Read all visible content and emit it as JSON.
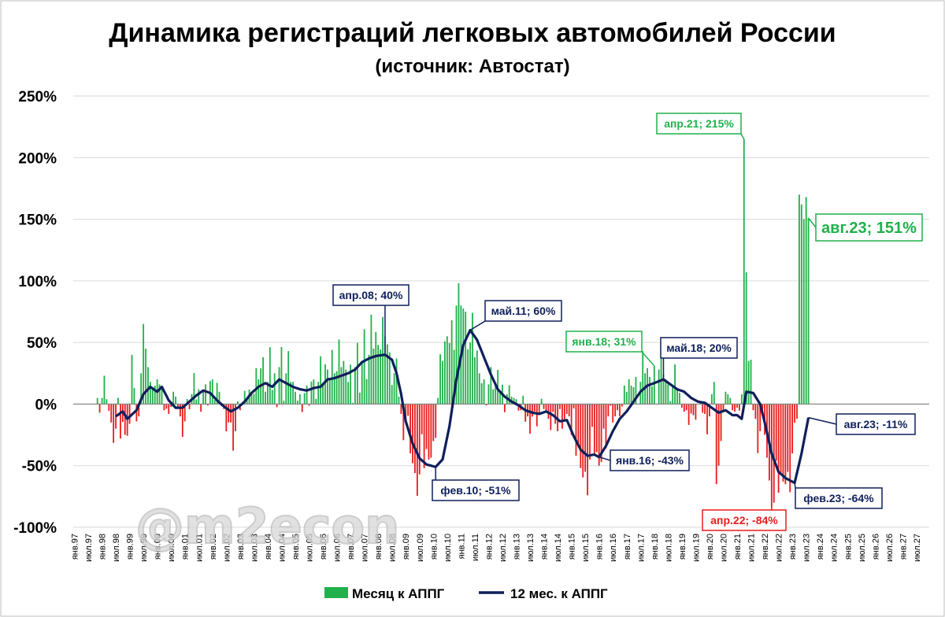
{
  "watermark": "@m2econ",
  "colors": {
    "positive": "#21b04b",
    "negative": "#e81c1c",
    "line": "#0e1f5b",
    "grid": "#d9d9d9"
  },
  "chart_data": {
    "type": "bar",
    "title": "Динамика регистраций легковых автомобилей России",
    "subtitle": "(источник: Автостат)",
    "ylim": [
      -100,
      250
    ],
    "yticks": [
      {
        "v": 250,
        "label": "250%"
      },
      {
        "v": 200,
        "label": "200%"
      },
      {
        "v": 150,
        "label": "150%"
      },
      {
        "v": 100,
        "label": "100%"
      },
      {
        "v": 50,
        "label": "50%"
      },
      {
        "v": 0,
        "label": "0%"
      },
      {
        "v": -50,
        "label": "-50%"
      },
      {
        "v": -100,
        "label": "-100%"
      }
    ],
    "x_tick_labels": [
      "янв.97",
      "июл.97",
      "янв.98",
      "июл.98",
      "янв.99",
      "июл.99",
      "янв.00",
      "июл.00",
      "янв.01",
      "июл.01",
      "янв.02",
      "июл.02",
      "янв.03",
      "июл.03",
      "янв.04",
      "июл.04",
      "янв.05",
      "июл.05",
      "янв.06",
      "июл.06",
      "янв.07",
      "июл.07",
      "янв.08",
      "июл.08",
      "янв.09",
      "июл.09",
      "янв.10",
      "июл.10",
      "янв.11",
      "июл.11",
      "янв.12",
      "июл.12",
      "янв.13",
      "июл.13",
      "янв.14",
      "июл.14",
      "янв.15",
      "июл.15",
      "янв.16",
      "июл.16",
      "янв.17",
      "июл.17",
      "янв.18",
      "июл.18",
      "янв.19",
      "июл.19",
      "янв.20",
      "июл.20",
      "янв.21",
      "июл.21",
      "янв.22",
      "июл.22",
      "янв.23",
      "июл.23",
      "янв.24",
      "июл.24",
      "янв.25",
      "июл.25",
      "янв.26",
      "июл.26",
      "янв.27",
      "июл.27"
    ],
    "start_month": "янв.97",
    "series": [
      {
        "name": "Месяц к АППГ",
        "kind": "bar",
        "values": [
          null,
          null,
          null,
          null,
          null,
          null,
          null,
          null,
          null,
          null,
          null,
          null,
          null,
          null,
          null,
          null,
          null,
          null,
          null,
          null,
          null,
          null,
          null,
          null,
          null,
          null,
          null,
          null,
          null,
          null,
          null,
          null,
          null,
          null,
          null,
          null,
          null,
          null,
          null,
          null,
          null,
          null,
          null,
          null,
          null,
          null,
          null,
          null,
          null,
          null,
          null,
          null,
          null,
          null,
          null,
          null,
          null,
          null,
          null,
          null,
          null,
          null,
          null,
          null,
          null,
          null,
          null,
          null,
          null,
          null,
          null,
          null,
          null,
          null,
          null,
          null,
          null,
          null,
          null,
          null,
          null,
          null,
          null,
          null,
          null,
          null,
          null,
          null,
          null,
          null,
          null,
          null,
          null,
          null,
          null,
          null,
          null,
          null,
          null,
          null,
          null,
          null,
          null,
          null,
          null,
          null,
          null,
          null,
          null,
          null,
          null,
          null,
          null,
          null,
          null,
          null,
          null,
          null,
          null,
          null,
          null,
          null,
          null,
          null,
          null,
          null,
          null,
          null,
          null,
          null,
          null,
          null,
          null,
          null,
          null,
          null,
          null,
          null,
          null,
          null,
          null,
          null,
          null,
          null,
          null,
          null,
          null,
          null,
          null,
          null,
          null,
          null,
          null,
          null,
          null,
          null,
          null,
          null,
          null,
          null,
          null,
          null,
          null,
          null,
          null,
          null,
          null,
          null,
          null,
          null,
          null,
          null,
          null,
          null,
          null,
          null,
          null,
          null,
          null,
          null,
          null,
          null,
          null,
          null,
          null,
          null,
          null,
          null,
          null,
          null,
          null,
          null,
          null,
          null,
          null,
          null,
          null,
          null,
          null,
          null,
          null,
          null,
          null,
          null,
          null,
          null,
          null,
          null,
          null,
          null,
          null,
          null,
          null,
          null,
          null,
          null,
          null,
          null,
          null,
          null,
          null,
          null,
          null,
          null,
          null,
          null,
          null,
          null,
          null,
          null,
          null,
          null,
          null,
          null,
          null,
          null,
          null,
          null,
          null,
          null,
          null,
          null,
          null,
          null,
          null,
          null,
          null,
          null,
          null,
          null,
          null,
          null,
          null,
          null,
          null,
          null,
          null,
          null,
          null,
          null,
          null,
          null,
          null,
          null,
          null,
          null,
          null,
          null,
          null,
          null,
          null,
          null,
          null,
          null,
          null,
          null,
          null,
          null,
          null,
          null,
          null,
          null,
          null,
          null,
          null,
          null,
          null,
          null,
          null,
          null,
          null,
          null,
          null,
          null,
          null,
          null,
          null,
          null,
          null,
          null,
          null,
          null,
          null,
          null,
          null,
          null,
          null,
          null,
          null,
          null,
          null,
          null,
          null,
          null,
          null,
          null,
          null,
          null,
          null,
          null,
          null,
          null,
          null,
          null,
          null,
          null,
          null,
          null,
          null,
          null,
          null,
          null,
          null,
          null,
          null,
          null,
          null,
          null,
          null,
          null,
          null,
          null,
          null,
          null,
          null,
          null,
          null,
          null,
          null,
          null,
          null,
          null,
          null,
          null,
          null,
          null,
          null,
          null,
          null,
          null,
          null,
          null,
          null,
          null,
          null,
          null,
          null,
          null,
          null,
          null,
          null,
          null,
          null,
          null,
          null,
          null,
          null,
          null,
          null,
          null,
          null,
          null,
          null,
          null
        ]
      },
      {
        "name": "12 мес. к АППГ",
        "kind": "line",
        "values": []
      }
    ],
    "annotations": [
      {
        "label": "апр.08; 40%",
        "month": "апр.08",
        "value": 40,
        "color": "#0e1f5b"
      },
      {
        "label": "фев.10; -51%",
        "month": "фев.10",
        "value": -51,
        "color": "#0e1f5b"
      },
      {
        "label": "май.11; 60%",
        "month": "май.11",
        "value": 60,
        "color": "#0e1f5b"
      },
      {
        "label": "янв.16; -43%",
        "month": "янв.16",
        "value": -43,
        "color": "#0e1f5b"
      },
      {
        "label": "янв.18; 31%",
        "month": "янв.18",
        "value": 31,
        "color": "#21b04b"
      },
      {
        "label": "май.18; 20%",
        "month": "май.18",
        "value": 20,
        "color": "#0e1f5b"
      },
      {
        "label": "апр.21; 215%",
        "month": "апр.21",
        "value": 215,
        "color": "#21b04b"
      },
      {
        "label": "апр.22; -84%",
        "month": "апр.22",
        "value": -84,
        "color": "#e81c1c"
      },
      {
        "label": "фев.23; -64%",
        "month": "фев.23",
        "value": -64,
        "color": "#0e1f5b"
      },
      {
        "label": "авг.23; 151%",
        "month": "авг.23",
        "value": 151,
        "color": "#21b04b"
      },
      {
        "label": "авг.23; -11%",
        "month": "авг.23",
        "value": -11,
        "color": "#0e1f5b"
      }
    ],
    "legend_position": "bottom",
    "grid": true
  }
}
